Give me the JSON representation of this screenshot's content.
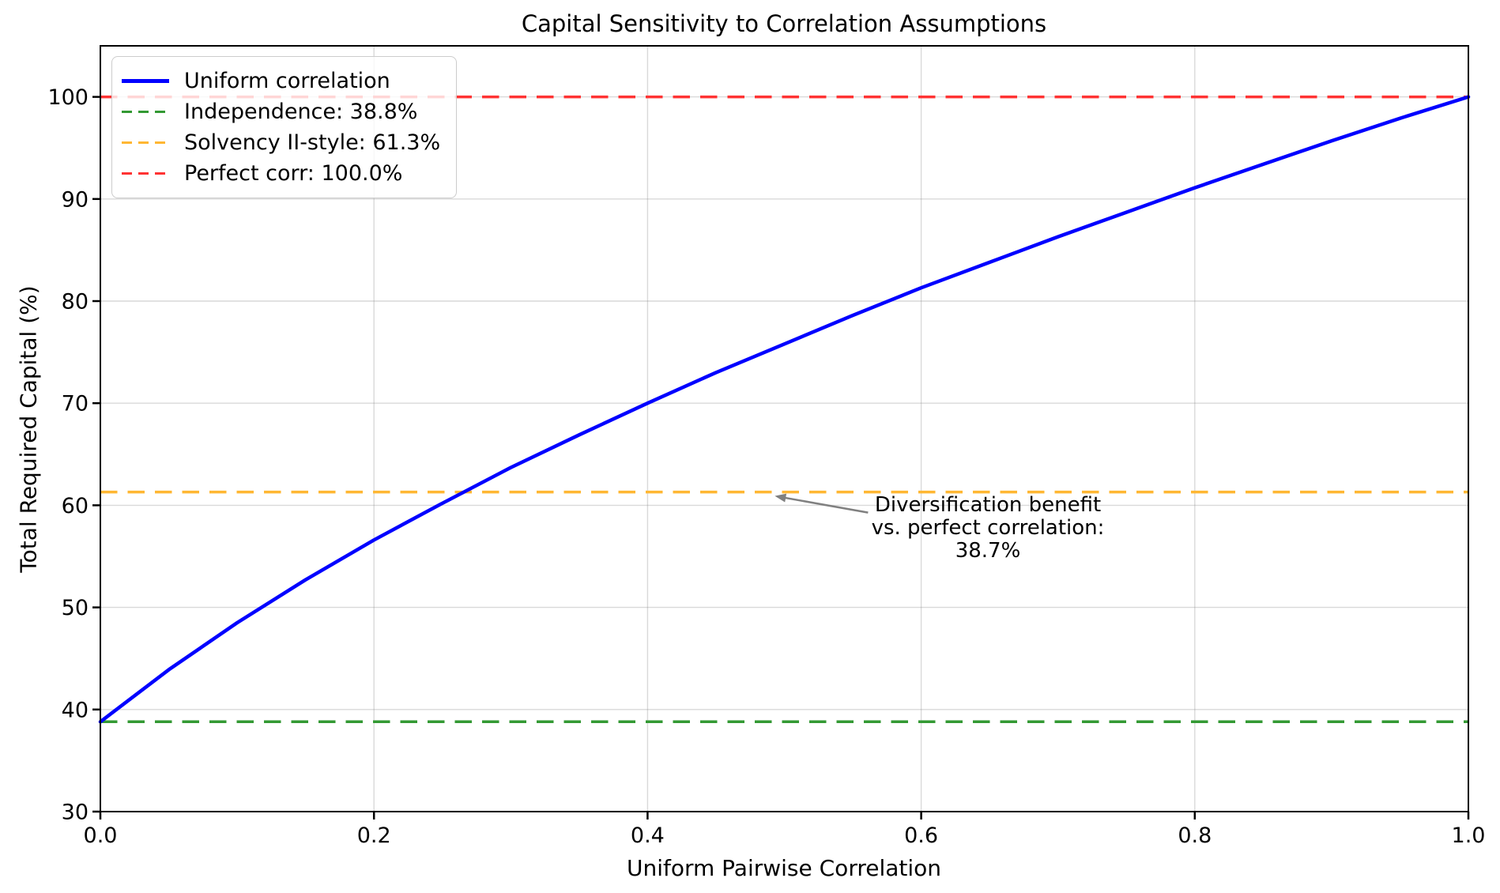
{
  "chart_data": {
    "type": "line",
    "title": "Capital Sensitivity to Correlation Assumptions",
    "xlabel": "Uniform Pairwise Correlation",
    "ylabel": "Total Required Capital (%)",
    "xlim": [
      0.0,
      1.0
    ],
    "ylim": [
      30,
      105
    ],
    "grid": true,
    "grid_color": "rgba(128,128,128,0.3)",
    "xtick_values": [
      0.0,
      0.2,
      0.4,
      0.6,
      0.8,
      1.0
    ],
    "xtick_labels": [
      "0.0",
      "0.2",
      "0.4",
      "0.6",
      "0.8",
      "1.0"
    ],
    "ytick_values": [
      30,
      40,
      50,
      60,
      70,
      80,
      90,
      100
    ],
    "ytick_labels": [
      "30",
      "40",
      "50",
      "60",
      "70",
      "80",
      "90",
      "100"
    ],
    "series": [
      {
        "name": "Uniform correlation",
        "color": "#0000ff",
        "style": "solid",
        "x": [
          0.0,
          0.05,
          0.1,
          0.15,
          0.2,
          0.25,
          0.3,
          0.35,
          0.4,
          0.45,
          0.5,
          0.55,
          0.6,
          0.65,
          0.7,
          0.75,
          0.8,
          0.85,
          0.9,
          0.95,
          1.0
        ],
        "y": [
          38.8,
          43.9,
          48.5,
          52.7,
          56.6,
          60.2,
          63.7,
          66.9,
          70.0,
          73.0,
          75.8,
          78.6,
          81.3,
          83.8,
          86.3,
          88.7,
          91.1,
          93.4,
          95.7,
          97.9,
          100.0
        ]
      }
    ],
    "reference_lines": [
      {
        "name": "Independence: 38.8%",
        "value": 38.8,
        "color": "#339933",
        "style": "dashed"
      },
      {
        "name": "Solvency II-style: 61.3%",
        "value": 61.3,
        "color": "#ffb733",
        "style": "dashed"
      },
      {
        "name": "Perfect corr: 100.0%",
        "value": 100.0,
        "color": "#ff3333",
        "style": "dashed"
      }
    ],
    "legend": {
      "position": "upper left",
      "entries": [
        {
          "label": "Uniform correlation",
          "color": "#0000ff",
          "style": "solid"
        },
        {
          "label": "Independence: 38.8%",
          "color": "#339933",
          "style": "dashed"
        },
        {
          "label": "Solvency II-style: 61.3%",
          "color": "#ffb733",
          "style": "dashed"
        },
        {
          "label": "Perfect corr: 100.0%",
          "color": "#ff3333",
          "style": "dashed"
        }
      ]
    },
    "annotation": {
      "lines": [
        "Diversification benefit",
        "vs. perfect correlation:",
        "38.7%"
      ],
      "target": {
        "x": 0.493,
        "y": 61.3
      },
      "arrow_color": "#808080"
    }
  }
}
